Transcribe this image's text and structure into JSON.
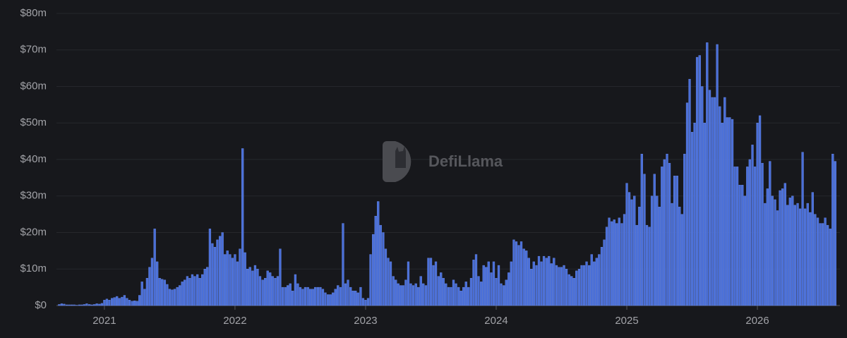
{
  "chart_data": {
    "type": "bar",
    "watermark": "DefiLlama",
    "color": "#4a6fd8",
    "grid": true,
    "xlim": [
      2020.633,
      2026.632
    ],
    "xticks": [
      2021,
      2022,
      2023,
      2024,
      2025,
      2026
    ],
    "ylim": [
      0,
      80000000
    ],
    "yticks": [
      {
        "value": 0,
        "label": "$0"
      },
      {
        "value": 10000000,
        "label": "$10m"
      },
      {
        "value": 20000000,
        "label": "$20m"
      },
      {
        "value": 30000000,
        "label": "$30m"
      },
      {
        "value": 40000000,
        "label": "$40m"
      },
      {
        "value": 50000000,
        "label": "$50m"
      },
      {
        "value": 60000000,
        "label": "$60m"
      },
      {
        "value": 70000000,
        "label": "$70m"
      },
      {
        "value": 80000000,
        "label": "$80m"
      }
    ],
    "x": [
      2020.654,
      2020.673,
      2020.692,
      2020.712,
      2020.731,
      2020.75,
      2020.769,
      2020.788,
      2020.808,
      2020.827,
      2020.846,
      2020.865,
      2020.885,
      2020.904,
      2020.923,
      2020.942,
      2020.962,
      2020.981,
      2021,
      2021.019,
      2021.038,
      2021.058,
      2021.077,
      2021.096,
      2021.115,
      2021.135,
      2021.154,
      2021.173,
      2021.192,
      2021.212,
      2021.231,
      2021.25,
      2021.269,
      2021.288,
      2021.308,
      2021.327,
      2021.346,
      2021.365,
      2021.385,
      2021.404,
      2021.423,
      2021.442,
      2021.462,
      2021.481,
      2021.5,
      2021.519,
      2021.538,
      2021.558,
      2021.577,
      2021.596,
      2021.615,
      2021.635,
      2021.654,
      2021.673,
      2021.692,
      2021.712,
      2021.731,
      2021.75,
      2021.769,
      2021.788,
      2021.808,
      2021.827,
      2021.846,
      2021.865,
      2021.885,
      2021.904,
      2021.923,
      2021.942,
      2021.962,
      2021.981,
      2022,
      2022.019,
      2022.038,
      2022.058,
      2022.077,
      2022.096,
      2022.115,
      2022.135,
      2022.154,
      2022.173,
      2022.192,
      2022.212,
      2022.231,
      2022.25,
      2022.269,
      2022.288,
      2022.308,
      2022.327,
      2022.346,
      2022.365,
      2022.385,
      2022.404,
      2022.423,
      2022.442,
      2022.462,
      2022.481,
      2022.5,
      2022.519,
      2022.538,
      2022.558,
      2022.577,
      2022.596,
      2022.615,
      2022.635,
      2022.654,
      2022.673,
      2022.692,
      2022.712,
      2022.731,
      2022.75,
      2022.769,
      2022.788,
      2022.808,
      2022.827,
      2022.846,
      2022.865,
      2022.885,
      2022.904,
      2022.923,
      2022.942,
      2022.962,
      2022.981,
      2023,
      2023.019,
      2023.038,
      2023.058,
      2023.077,
      2023.096,
      2023.115,
      2023.135,
      2023.154,
      2023.173,
      2023.192,
      2023.212,
      2023.231,
      2023.25,
      2023.269,
      2023.288,
      2023.308,
      2023.327,
      2023.346,
      2023.365,
      2023.385,
      2023.404,
      2023.423,
      2023.442,
      2023.462,
      2023.481,
      2023.5,
      2023.519,
      2023.538,
      2023.558,
      2023.577,
      2023.596,
      2023.615,
      2023.635,
      2023.654,
      2023.673,
      2023.692,
      2023.712,
      2023.731,
      2023.75,
      2023.769,
      2023.788,
      2023.808,
      2023.827,
      2023.846,
      2023.865,
      2023.885,
      2023.904,
      2023.923,
      2023.942,
      2023.962,
      2023.981,
      2024,
      2024.019,
      2024.038,
      2024.058,
      2024.077,
      2024.096,
      2024.115,
      2024.135,
      2024.154,
      2024.173,
      2024.192,
      2024.212,
      2024.231,
      2024.25,
      2024.269,
      2024.288,
      2024.308,
      2024.327,
      2024.346,
      2024.365,
      2024.385,
      2024.404,
      2024.423,
      2024.442,
      2024.462,
      2024.481,
      2024.5,
      2024.519,
      2024.538,
      2024.558,
      2024.577,
      2024.596,
      2024.615,
      2024.635,
      2024.654,
      2024.673,
      2024.692,
      2024.712,
      2024.731,
      2024.75,
      2024.769,
      2024.788,
      2024.808,
      2024.827,
      2024.846,
      2024.865,
      2024.885,
      2024.904,
      2024.923,
      2024.942,
      2024.962,
      2024.981,
      2025,
      2025.019,
      2025.038,
      2025.058,
      2025.077,
      2025.096,
      2025.115,
      2025.135,
      2025.154,
      2025.173,
      2025.192,
      2025.212,
      2025.231,
      2025.25,
      2025.269,
      2025.288,
      2025.308,
      2025.327,
      2025.346,
      2025.365,
      2025.385,
      2025.404,
      2025.423,
      2025.442,
      2025.462,
      2025.481,
      2025.5,
      2025.519,
      2025.538,
      2025.558,
      2025.577,
      2025.596,
      2025.615,
      2025.635,
      2025.654,
      2025.673,
      2025.692,
      2025.712,
      2025.731,
      2025.75,
      2025.769,
      2025.788,
      2025.808,
      2025.827,
      2025.846,
      2025.865,
      2025.885,
      2025.904,
      2025.923,
      2025.942,
      2025.962,
      2025.981,
      2026,
      2026.019,
      2026.038,
      2026.058,
      2026.077,
      2026.096,
      2026.115,
      2026.135,
      2026.154,
      2026.173,
      2026.192,
      2026.212,
      2026.231,
      2026.25,
      2026.269,
      2026.288,
      2026.308,
      2026.327,
      2026.346,
      2026.365,
      2026.385,
      2026.404,
      2026.423,
      2026.442,
      2026.462,
      2026.481,
      2026.5,
      2026.519,
      2026.538,
      2026.558,
      2026.577,
      2026.596
    ],
    "values": [
      300000,
      500000,
      400000,
      200000,
      200000,
      200000,
      200000,
      100000,
      200000,
      200000,
      300000,
      500000,
      300000,
      200000,
      300000,
      500000,
      400000,
      600000,
      1500000,
      1800000,
      1500000,
      2000000,
      2200000,
      2500000,
      2000000,
      2300000,
      2800000,
      2000000,
      1500000,
      1200000,
      1300000,
      1200000,
      2800000,
      6500000,
      4500000,
      7500000,
      10500000,
      13000000,
      21000000,
      12000000,
      7500000,
      7200000,
      7000000,
      5800000,
      4500000,
      4300000,
      4500000,
      5000000,
      5500000,
      6500000,
      7000000,
      8000000,
      7500000,
      8500000,
      8000000,
      8500000,
      7500000,
      8500000,
      10000000,
      10500000,
      21000000,
      17000000,
      16000000,
      18000000,
      19000000,
      20000000,
      14000000,
      15000000,
      14000000,
      13000000,
      14000000,
      12000000,
      15500000,
      43000000,
      14500000,
      10000000,
      10500000,
      9500000,
      11000000,
      10000000,
      8000000,
      7000000,
      7500000,
      9500000,
      9000000,
      8000000,
      7500000,
      8000000,
      15500000,
      5000000,
      5000000,
      5500000,
      6000000,
      4000000,
      8500000,
      6000000,
      5000000,
      4500000,
      5000000,
      5000000,
      4500000,
      4500000,
      5000000,
      5000000,
      5000000,
      4500000,
      3500000,
      3000000,
      3000000,
      3500000,
      4500000,
      5500000,
      5000000,
      22500000,
      6000000,
      7000000,
      5000000,
      4000000,
      4000000,
      3500000,
      5000000,
      2000000,
      1500000,
      2000000,
      14000000,
      19500000,
      24500000,
      28500000,
      22000000,
      20000000,
      15500000,
      13000000,
      12000000,
      8000000,
      7000000,
      6000000,
      5500000,
      5500000,
      7000000,
      12000000,
      6000000,
      5500000,
      6000000,
      5000000,
      8000000,
      6000000,
      5500000,
      13000000,
      13000000,
      11000000,
      12000000,
      8000000,
      9000000,
      7500000,
      6000000,
      5000000,
      5000000,
      7000000,
      6000000,
      5000000,
      4000000,
      5000000,
      6500000,
      5000000,
      7500000,
      12500000,
      14000000,
      8000000,
      6500000,
      11000000,
      10500000,
      12000000,
      9000000,
      12000000,
      7500000,
      11000000,
      6000000,
      5500000,
      7000000,
      9000000,
      12000000,
      18000000,
      17500000,
      16500000,
      17500000,
      15500000,
      15000000,
      13000000,
      10000000,
      12000000,
      11000000,
      13500000,
      12000000,
      13500000,
      13000000,
      13500000,
      11500000,
      13000000,
      11000000,
      10500000,
      10500000,
      11000000,
      10000000,
      8500000,
      8000000,
      7500000,
      9500000,
      10000000,
      11000000,
      11000000,
      12000000,
      11000000,
      14000000,
      12000000,
      13000000,
      14000000,
      16000000,
      18000000,
      21500000,
      24000000,
      23000000,
      23500000,
      22500000,
      24000000,
      22500000,
      25000000,
      33500000,
      31000000,
      29000000,
      30000000,
      22000000,
      27000000,
      41500000,
      36000000,
      22000000,
      21500000,
      30000000,
      36000000,
      30000000,
      27000000,
      38000000,
      40000000,
      41500000,
      39000000,
      28000000,
      35500000,
      35500000,
      27000000,
      25000000,
      41500000,
      55500000,
      62000000,
      47500000,
      50000000,
      68000000,
      68500000,
      60000000,
      50000000,
      72000000,
      59000000,
      57000000,
      57000000,
      71500000,
      54500000,
      50000000,
      57000000,
      51500000,
      51500000,
      51000000,
      38000000,
      38000000,
      33000000,
      33000000,
      30000000,
      38000000,
      40000000,
      44000000,
      38000000,
      50000000,
      52000000,
      39000000,
      28000000,
      32000000,
      39500000,
      30000000,
      29000000,
      26000000,
      31500000,
      32000000,
      33500000,
      27500000,
      29500000,
      30000000,
      27500000,
      28000000,
      26500000,
      42000000,
      26500000,
      28000000,
      25500000,
      31000000,
      25000000,
      24000000,
      22500000,
      22500000,
      24000000,
      22000000,
      21000000,
      41500000,
      39500000
    ]
  }
}
